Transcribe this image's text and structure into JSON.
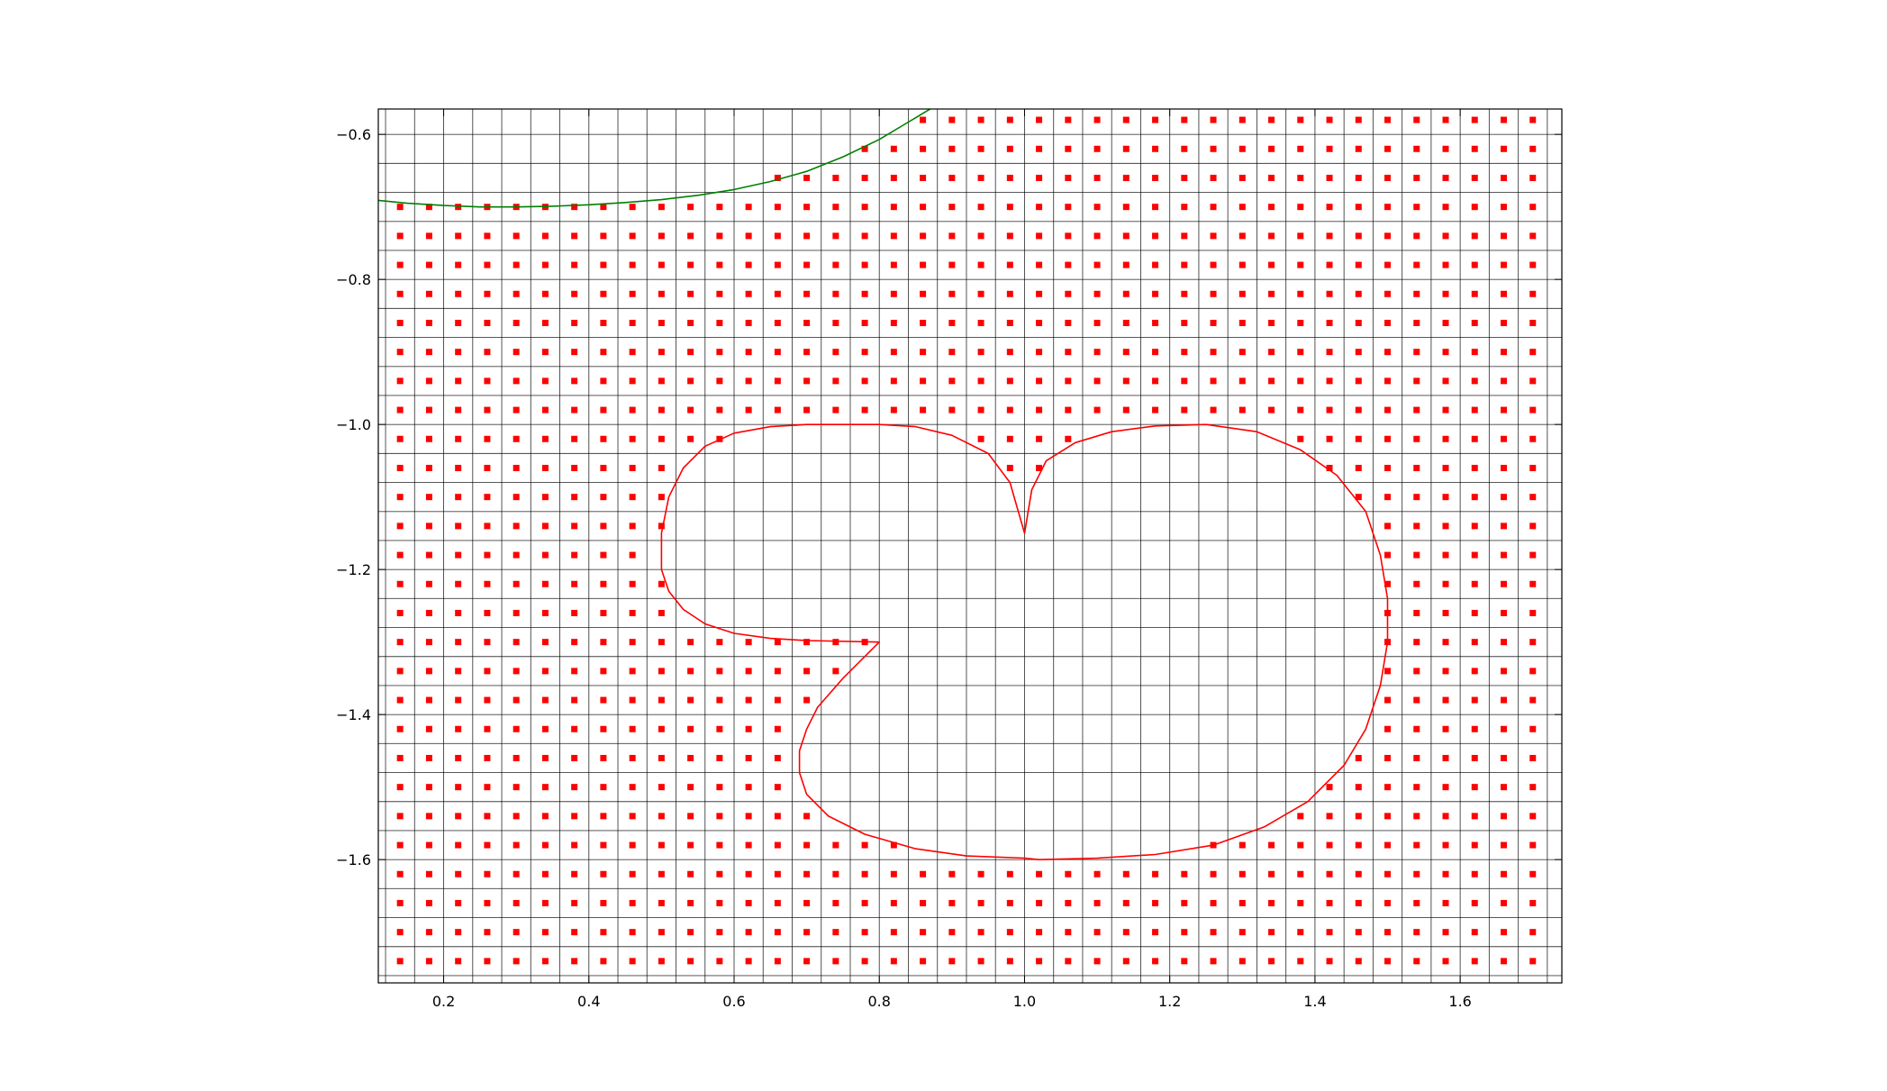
{
  "chart_data": {
    "type": "scatter",
    "title": "",
    "xlabel": "",
    "ylabel": "",
    "xlim": [
      0.11,
      1.74
    ],
    "ylim": [
      -1.77,
      -0.565
    ],
    "grid": true,
    "grid_spacing": 0.04,
    "x_ticks": [
      0.2,
      0.4,
      0.6,
      0.8,
      1.0,
      1.2,
      1.4,
      1.6
    ],
    "x_tick_labels": [
      "0.2",
      "0.4",
      "0.6",
      "0.8",
      "1.0",
      "1.2",
      "1.4",
      "1.6"
    ],
    "y_ticks": [
      -0.6,
      -0.8,
      -1.0,
      -1.2,
      -1.4,
      -1.6
    ],
    "y_tick_labels": [
      "−0.6",
      "−0.8",
      "−1.0",
      "−1.2",
      "−1.4",
      "−1.6"
    ],
    "points": {
      "marker": "square",
      "color": "#ff0000",
      "x_start": 0.14,
      "y_start": -1.74,
      "step": 0.04,
      "nx": 40,
      "ny": 30,
      "description": "grid points lying outside the red closed curve and below the green curve"
    },
    "red_curve": {
      "color": "#ff0000",
      "closed": true,
      "points": [
        [
          1.0,
          -1.15
        ],
        [
          0.98,
          -1.08
        ],
        [
          0.95,
          -1.04
        ],
        [
          0.9,
          -1.015
        ],
        [
          0.85,
          -1.003
        ],
        [
          0.8,
          -1.0
        ],
        [
          0.75,
          -1.0
        ],
        [
          0.7,
          -1.0
        ],
        [
          0.65,
          -1.003
        ],
        [
          0.6,
          -1.012
        ],
        [
          0.56,
          -1.03
        ],
        [
          0.53,
          -1.06
        ],
        [
          0.51,
          -1.1
        ],
        [
          0.5,
          -1.15
        ],
        [
          0.5,
          -1.2
        ],
        [
          0.51,
          -1.23
        ],
        [
          0.53,
          -1.255
        ],
        [
          0.56,
          -1.275
        ],
        [
          0.6,
          -1.288
        ],
        [
          0.65,
          -1.295
        ],
        [
          0.7,
          -1.298
        ],
        [
          0.8,
          -1.3
        ],
        [
          0.75,
          -1.35
        ],
        [
          0.715,
          -1.39
        ],
        [
          0.7,
          -1.42
        ],
        [
          0.69,
          -1.45
        ],
        [
          0.69,
          -1.48
        ],
        [
          0.7,
          -1.51
        ],
        [
          0.73,
          -1.54
        ],
        [
          0.78,
          -1.565
        ],
        [
          0.85,
          -1.585
        ],
        [
          0.92,
          -1.595
        ],
        [
          1.0,
          -1.598
        ],
        [
          1.02,
          -1.6
        ],
        [
          1.1,
          -1.598
        ],
        [
          1.18,
          -1.593
        ],
        [
          1.26,
          -1.58
        ],
        [
          1.33,
          -1.555
        ],
        [
          1.39,
          -1.52
        ],
        [
          1.44,
          -1.47
        ],
        [
          1.47,
          -1.42
        ],
        [
          1.49,
          -1.36
        ],
        [
          1.5,
          -1.3
        ],
        [
          1.5,
          -1.24
        ],
        [
          1.49,
          -1.18
        ],
        [
          1.47,
          -1.12
        ],
        [
          1.43,
          -1.07
        ],
        [
          1.38,
          -1.035
        ],
        [
          1.32,
          -1.01
        ],
        [
          1.25,
          -1.0
        ],
        [
          1.18,
          -1.002
        ],
        [
          1.12,
          -1.01
        ],
        [
          1.07,
          -1.025
        ],
        [
          1.03,
          -1.05
        ],
        [
          1.01,
          -1.09
        ],
        [
          1.0,
          -1.15
        ]
      ]
    },
    "green_curve": {
      "color": "#008000",
      "closed": false,
      "points": [
        [
          0.1,
          -0.69
        ],
        [
          0.15,
          -0.695
        ],
        [
          0.2,
          -0.698
        ],
        [
          0.25,
          -0.7
        ],
        [
          0.3,
          -0.7
        ],
        [
          0.35,
          -0.699
        ],
        [
          0.4,
          -0.697
        ],
        [
          0.45,
          -0.694
        ],
        [
          0.5,
          -0.69
        ],
        [
          0.55,
          -0.684
        ],
        [
          0.6,
          -0.676
        ],
        [
          0.65,
          -0.665
        ],
        [
          0.7,
          -0.651
        ],
        [
          0.75,
          -0.631
        ],
        [
          0.8,
          -0.607
        ],
        [
          0.84,
          -0.583
        ],
        [
          0.875,
          -0.562
        ]
      ]
    }
  }
}
